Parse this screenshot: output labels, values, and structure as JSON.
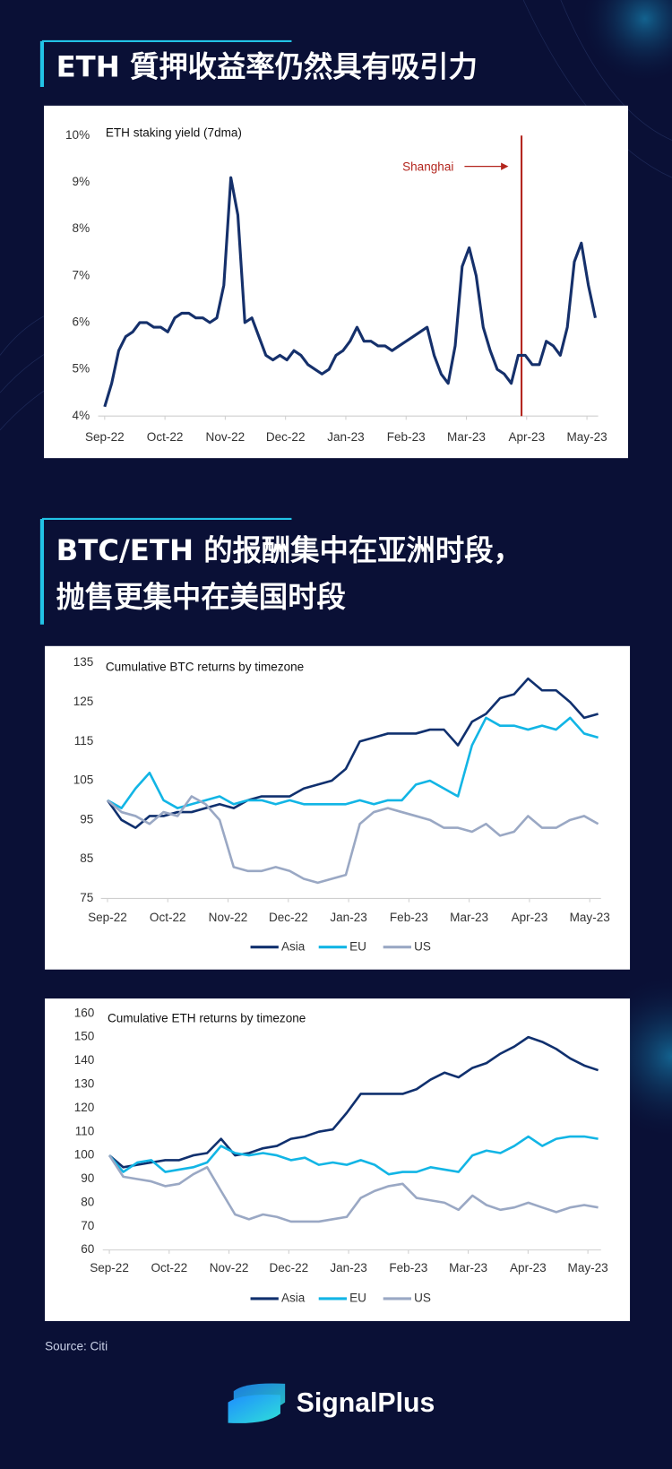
{
  "headings": [
    {
      "lines": [
        "ETH 質押收益率仍然具有吸引力"
      ]
    },
    {
      "lines": [
        "BTC/ETH 的报酬集中在亚洲时段，",
        "抛售更集中在美国时段"
      ]
    }
  ],
  "chart_data": [
    {
      "type": "line",
      "title": "ETH staking yield (7dma)",
      "x_labels": [
        "Sep-22",
        "Oct-22",
        "Nov-22",
        "Dec-22",
        "Jan-23",
        "Feb-23",
        "Mar-23",
        "Apr-23",
        "May-23"
      ],
      "color": "#15306b",
      "ylim": [
        4,
        10
      ],
      "yticks": [
        {
          "value": 4,
          "label": "4%"
        },
        {
          "value": 5,
          "label": "5%"
        },
        {
          "value": 6,
          "label": "6%"
        },
        {
          "value": 7,
          "label": "7%"
        },
        {
          "value": 8,
          "label": "8%"
        },
        {
          "value": 9,
          "label": "9%"
        },
        {
          "value": 10,
          "label": "10%"
        }
      ],
      "values": [
        4.2,
        4.7,
        5.4,
        5.7,
        5.8,
        6.0,
        6.0,
        5.9,
        5.9,
        5.8,
        6.1,
        6.2,
        6.2,
        6.1,
        6.1,
        6.0,
        6.1,
        6.8,
        9.1,
        8.3,
        6.0,
        6.1,
        5.7,
        5.3,
        5.2,
        5.3,
        5.2,
        5.4,
        5.3,
        5.1,
        5.0,
        4.9,
        5.0,
        5.3,
        5.4,
        5.6,
        5.9,
        5.6,
        5.6,
        5.5,
        5.5,
        5.4,
        5.5,
        5.6,
        5.7,
        5.8,
        5.9,
        5.3,
        4.9,
        4.7,
        5.5,
        7.2,
        7.6,
        7.0,
        5.9,
        5.4,
        5.0,
        4.9,
        4.7,
        5.3,
        5.3,
        5.1,
        5.1,
        5.6,
        5.5,
        5.3,
        5.9,
        7.3,
        7.7,
        6.8,
        6.1
      ],
      "annotation": {
        "text": "Shanghai",
        "color": "#b3261e"
      }
    },
    {
      "type": "line",
      "title": "Cumulative BTC returns by timezone",
      "x_labels": [
        "Sep-22",
        "Oct-22",
        "Nov-22",
        "Dec-22",
        "Jan-23",
        "Feb-23",
        "Mar-23",
        "Apr-23",
        "May-23"
      ],
      "ylim": [
        75,
        135
      ],
      "yticks": [
        75,
        85,
        95,
        105,
        115,
        125,
        135
      ],
      "series": [
        {
          "name": "Asia",
          "color": "#10306e",
          "values": [
            100,
            95,
            93,
            96,
            96,
            97,
            97,
            98,
            99,
            98,
            100,
            101,
            101,
            101,
            103,
            104,
            105,
            108,
            115,
            116,
            117,
            117,
            117,
            118,
            118,
            114,
            120,
            122,
            126,
            127,
            131,
            128,
            128,
            125,
            121,
            122
          ]
        },
        {
          "name": "EU",
          "color": "#12b5e5",
          "values": [
            100,
            98,
            103,
            107,
            100,
            98,
            99,
            100,
            101,
            99,
            100,
            100,
            99,
            100,
            99,
            99,
            99,
            99,
            100,
            99,
            100,
            100,
            104,
            105,
            103,
            101,
            114,
            121,
            119,
            119,
            118,
            119,
            118,
            121,
            117,
            116
          ]
        },
        {
          "name": "US",
          "color": "#9aa8c4",
          "values": [
            100,
            97,
            96,
            94,
            97,
            96,
            101,
            99,
            95,
            83,
            82,
            82,
            83,
            82,
            80,
            79,
            80,
            81,
            94,
            97,
            98,
            97,
            96,
            95,
            93,
            93,
            92,
            94,
            91,
            92,
            96,
            93,
            93,
            95,
            96,
            94
          ]
        }
      ]
    },
    {
      "type": "line",
      "title": "Cumulative ETH returns by timezone",
      "x_labels": [
        "Sep-22",
        "Oct-22",
        "Nov-22",
        "Dec-22",
        "Jan-23",
        "Feb-23",
        "Mar-23",
        "Apr-23",
        "May-23"
      ],
      "ylim": [
        60,
        160
      ],
      "yticks": [
        60,
        70,
        80,
        90,
        100,
        110,
        120,
        130,
        140,
        150,
        160
      ],
      "series": [
        {
          "name": "Asia",
          "color": "#10306e",
          "values": [
            100,
            95,
            96,
            97,
            98,
            98,
            100,
            101,
            107,
            100,
            101,
            103,
            104,
            107,
            108,
            110,
            111,
            118,
            126,
            126,
            126,
            126,
            128,
            132,
            135,
            133,
            137,
            139,
            143,
            146,
            150,
            148,
            145,
            141,
            138,
            136
          ]
        },
        {
          "name": "EU",
          "color": "#12b5e5",
          "values": [
            100,
            93,
            97,
            98,
            93,
            94,
            95,
            97,
            104,
            101,
            100,
            101,
            100,
            98,
            99,
            96,
            97,
            96,
            98,
            96,
            92,
            93,
            93,
            95,
            94,
            93,
            100,
            102,
            101,
            104,
            108,
            104,
            107,
            108,
            108,
            107
          ]
        },
        {
          "name": "US",
          "color": "#9aa8c4",
          "values": [
            100,
            91,
            90,
            89,
            87,
            88,
            92,
            95,
            85,
            75,
            73,
            75,
            74,
            72,
            72,
            72,
            73,
            74,
            82,
            85,
            87,
            88,
            82,
            81,
            80,
            77,
            83,
            79,
            77,
            78,
            80,
            78,
            76,
            78,
            79,
            78
          ]
        }
      ]
    }
  ],
  "source": "Source: Citi",
  "brand": "SignalPlus"
}
